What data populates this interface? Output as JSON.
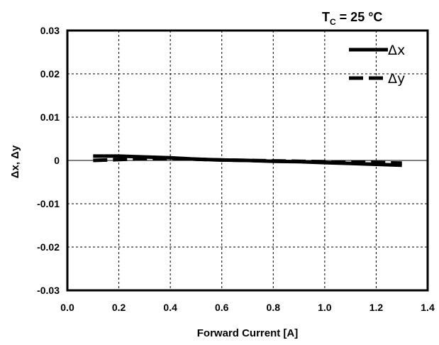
{
  "chart_data": {
    "type": "line",
    "condition": {
      "prefix": "T",
      "subscript": "C",
      "text": " = 25 °C"
    },
    "xlabel": "Forward Current [A]",
    "ylabel": "Δx,  Δy",
    "xlim": [
      0.0,
      1.4
    ],
    "ylim": [
      -0.03,
      0.03
    ],
    "xticks": [
      "0.0",
      "0.2",
      "0.4",
      "0.6",
      "0.8",
      "1.0",
      "1.2",
      "1.4"
    ],
    "yticks": [
      "0.03",
      "0.02",
      "0.01",
      "0",
      "-0.01",
      "-0.02",
      "-0.03"
    ],
    "grid": true,
    "legend_position": "top-right",
    "series": [
      {
        "name": "Δx",
        "style": "solid",
        "x": [
          0.1,
          0.2,
          0.3,
          0.4,
          0.5,
          0.6,
          0.7,
          0.8,
          0.9,
          1.0,
          1.1,
          1.2,
          1.3
        ],
        "y": [
          0.001,
          0.001,
          0.0008,
          0.0006,
          0.0003,
          0.0001,
          0.0,
          -0.0002,
          -0.0003,
          -0.0005,
          -0.0007,
          -0.0009,
          -0.0011
        ]
      },
      {
        "name": "Δy",
        "style": "dashed",
        "x": [
          0.1,
          0.2,
          0.3,
          0.4,
          0.5,
          0.6,
          0.7,
          0.8,
          0.9,
          1.0,
          1.1,
          1.2,
          1.3
        ],
        "y": [
          0.0,
          0.0002,
          0.0004,
          0.0005,
          0.0003,
          0.0001,
          0.0,
          -0.0001,
          -0.0002,
          -0.0003,
          -0.0004,
          -0.0005,
          -0.0006
        ]
      }
    ]
  }
}
